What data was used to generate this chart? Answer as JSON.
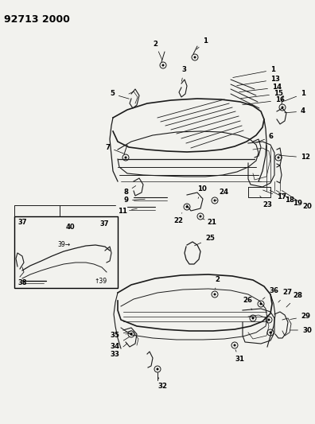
{
  "title": "92713 2000",
  "bg_color": "#f2f2ee",
  "line_color": "#1a1a1a",
  "fig_width": 3.96,
  "fig_height": 5.33,
  "dpi": 100,
  "title_fontsize": 9,
  "label_fontsize": 6.2
}
